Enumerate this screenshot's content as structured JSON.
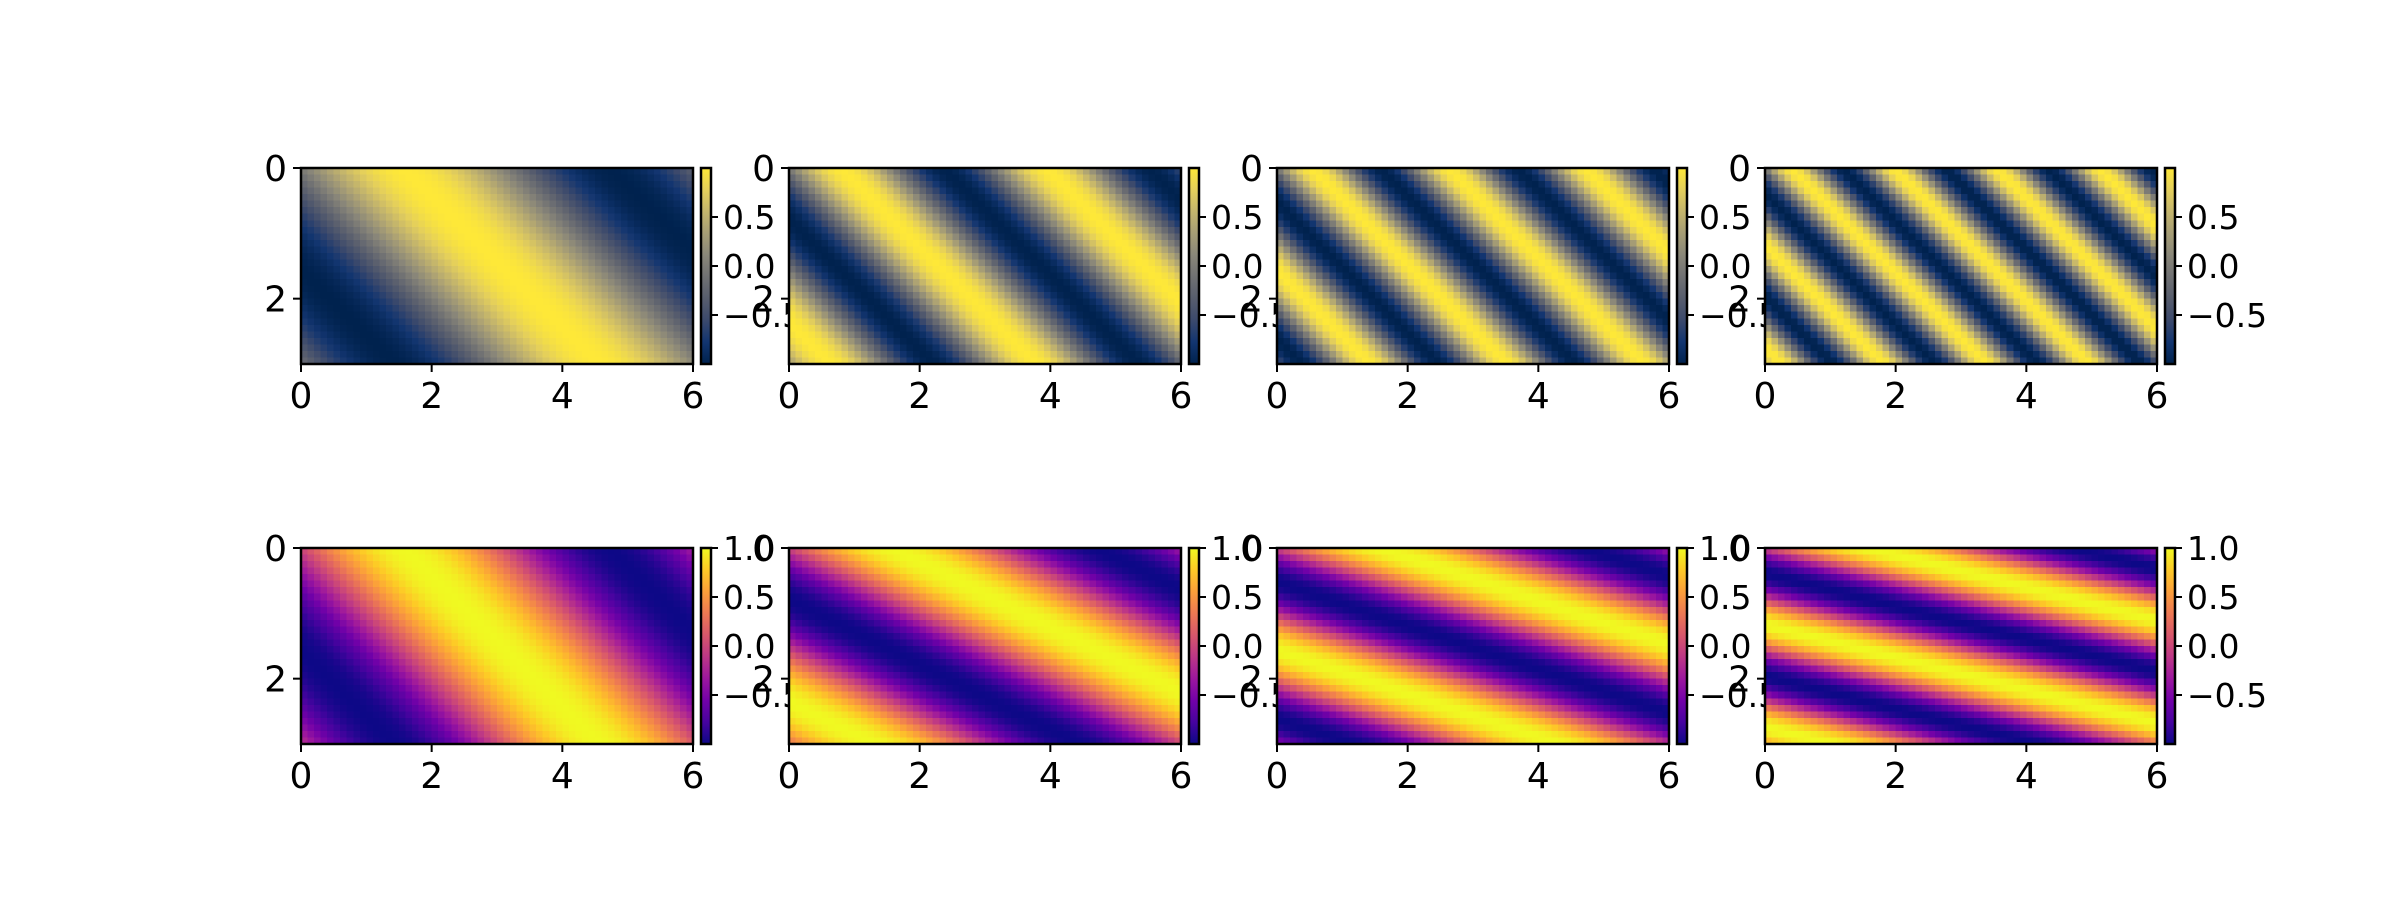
{
  "figure": {
    "layout": "2 rows x 4 columns of heatmaps, each with a vertical colorbar on its right"
  },
  "colormaps": {
    "cividis": [
      "#00224e",
      "#123570",
      "#3b496c",
      "#575d6d",
      "#707173",
      "#8a8779",
      "#a69d75",
      "#c4b56c",
      "#e4cf5b",
      "#fee838"
    ],
    "plasma": [
      "#0d0887",
      "#46039f",
      "#7201a8",
      "#9c179e",
      "#bd3786",
      "#d8576b",
      "#ed7953",
      "#fb9f3a",
      "#fdca26",
      "#f0f921"
    ]
  },
  "chart_data": [
    {
      "type": "heatmap",
      "row": 0,
      "col": 0,
      "colormap": "cividis",
      "function": "sin(k*(x - y))",
      "k": 1,
      "xlim": [
        0,
        6
      ],
      "ylim": [
        0,
        3
      ],
      "y_inverted": true,
      "xticks": [
        "0",
        "2",
        "4",
        "6"
      ],
      "yticks": [
        "0",
        "2"
      ],
      "clim": [
        -1,
        1
      ],
      "cbar_ticks": [
        "0.5",
        "0.0",
        "−0.5"
      ],
      "cbar_tick_values": [
        0.5,
        0,
        -0.5
      ]
    },
    {
      "type": "heatmap",
      "row": 0,
      "col": 1,
      "colormap": "cividis",
      "function": "sin(k*(x - y))",
      "k": 2,
      "xlim": [
        0,
        6
      ],
      "ylim": [
        0,
        3
      ],
      "y_inverted": true,
      "xticks": [
        "0",
        "2",
        "4",
        "6"
      ],
      "yticks": [
        "0",
        "2"
      ],
      "clim": [
        -1,
        1
      ],
      "cbar_ticks": [
        "0.5",
        "0.0",
        "−0.5"
      ],
      "cbar_tick_values": [
        0.5,
        0,
        -0.5
      ]
    },
    {
      "type": "heatmap",
      "row": 0,
      "col": 2,
      "colormap": "cividis",
      "function": "sin(k*(x - y))",
      "k": 3,
      "xlim": [
        0,
        6
      ],
      "ylim": [
        0,
        3
      ],
      "y_inverted": true,
      "xticks": [
        "0",
        "2",
        "4",
        "6"
      ],
      "yticks": [
        "0",
        "2"
      ],
      "clim": [
        -1,
        1
      ],
      "cbar_ticks": [
        "0.5",
        "0.0",
        "−0.5"
      ],
      "cbar_tick_values": [
        0.5,
        0,
        -0.5
      ]
    },
    {
      "type": "heatmap",
      "row": 0,
      "col": 3,
      "colormap": "cividis",
      "function": "sin(k*(x - y))",
      "k": 4,
      "xlim": [
        0,
        6
      ],
      "ylim": [
        0,
        3
      ],
      "y_inverted": true,
      "xticks": [
        "0",
        "2",
        "4",
        "6"
      ],
      "yticks": [
        "0",
        "2"
      ],
      "clim": [
        -1,
        1
      ],
      "cbar_ticks": [
        "0.5",
        "0.0",
        "−0.5"
      ],
      "cbar_tick_values": [
        0.5,
        0,
        -0.5
      ]
    },
    {
      "type": "heatmap",
      "row": 1,
      "col": 0,
      "colormap": "plasma",
      "function": "sin(x - k*y)",
      "k": 1,
      "xlim": [
        0,
        6
      ],
      "ylim": [
        0,
        3
      ],
      "y_inverted": true,
      "xticks": [
        "0",
        "2",
        "4",
        "6"
      ],
      "yticks": [
        "0",
        "2"
      ],
      "clim": [
        -1,
        1
      ],
      "cbar_ticks": [
        "1.0",
        "0.5",
        "0.0",
        "−0.5"
      ],
      "cbar_tick_values": [
        1,
        0.5,
        0,
        -0.5
      ]
    },
    {
      "type": "heatmap",
      "row": 1,
      "col": 1,
      "colormap": "plasma",
      "function": "sin(x - k*y)",
      "k": 2,
      "xlim": [
        0,
        6
      ],
      "ylim": [
        0,
        3
      ],
      "y_inverted": true,
      "xticks": [
        "0",
        "2",
        "4",
        "6"
      ],
      "yticks": [
        "0",
        "2"
      ],
      "clim": [
        -1,
        1
      ],
      "cbar_ticks": [
        "1.0",
        "0.5",
        "0.0",
        "−0.5"
      ],
      "cbar_tick_values": [
        1,
        0.5,
        0,
        -0.5
      ]
    },
    {
      "type": "heatmap",
      "row": 1,
      "col": 2,
      "colormap": "plasma",
      "function": "sin(x - k*y)",
      "k": 3,
      "xlim": [
        0,
        6
      ],
      "ylim": [
        0,
        3
      ],
      "y_inverted": true,
      "xticks": [
        "0",
        "2",
        "4",
        "6"
      ],
      "yticks": [
        "0",
        "2"
      ],
      "clim": [
        -1,
        1
      ],
      "cbar_ticks": [
        "1.0",
        "0.5",
        "0.0",
        "−0.5"
      ],
      "cbar_tick_values": [
        1,
        0.5,
        0,
        -0.5
      ]
    },
    {
      "type": "heatmap",
      "row": 1,
      "col": 3,
      "colormap": "plasma",
      "function": "sin(x - k*y)",
      "k": 4,
      "xlim": [
        0,
        6
      ],
      "ylim": [
        0,
        3
      ],
      "y_inverted": true,
      "xticks": [
        "0",
        "2",
        "4",
        "6"
      ],
      "yticks": [
        "0",
        "2"
      ],
      "clim": [
        -1,
        1
      ],
      "cbar_ticks": [
        "1.0",
        "0.5",
        "0.0",
        "−0.5"
      ],
      "cbar_tick_values": [
        1,
        0.5,
        0,
        -0.5
      ]
    }
  ]
}
